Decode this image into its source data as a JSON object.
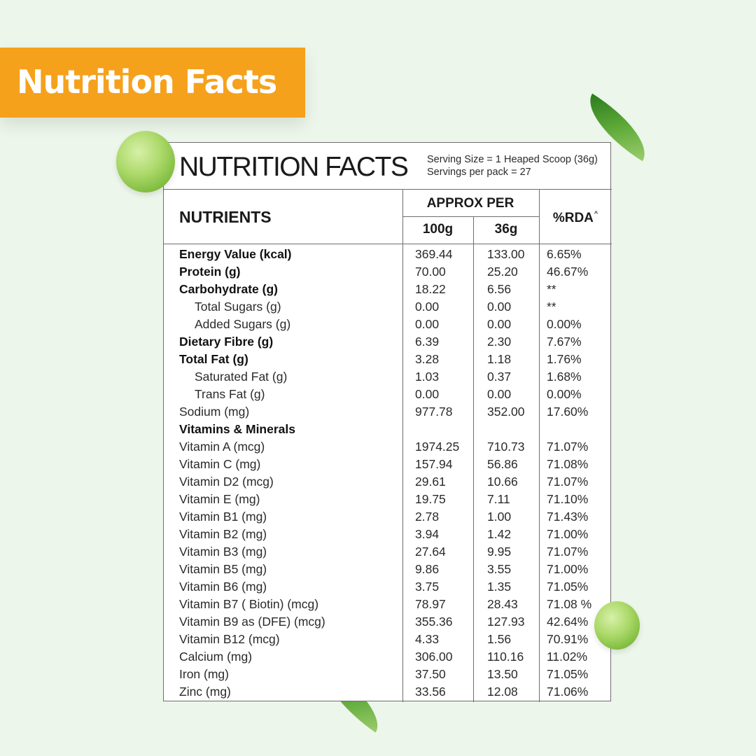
{
  "banner": {
    "title": "Nutrition Facts"
  },
  "card": {
    "title": "NUTRITION FACTS",
    "serving_size": "Serving Size = 1 Heaped Scoop (36g)",
    "servings_per_pack": "Servings per pack = 27"
  },
  "table": {
    "headers": {
      "nutrients": "NUTRIENTS",
      "approx_per": "APPROX PER",
      "col_100g": "100g",
      "col_36g": "36g",
      "rda": "%RDA",
      "rda_mark": "^"
    },
    "rows": [
      {
        "name": "Energy Value (kcal)",
        "v100": "369.44",
        "v36": "133.00",
        "rda": "6.65%",
        "style": "bold"
      },
      {
        "name": "Protein (g)",
        "v100": "70.00",
        "v36": "25.20",
        "rda": "46.67%",
        "style": "bold"
      },
      {
        "name": "Carbohydrate (g)",
        "v100": "18.22",
        "v36": "6.56",
        "rda": "**",
        "style": "bold"
      },
      {
        "name": "Total Sugars (g)",
        "v100": "0.00",
        "v36": "0.00",
        "rda": "**",
        "style": "indent"
      },
      {
        "name": "Added Sugars (g)",
        "v100": "0.00",
        "v36": "0.00",
        "rda": "0.00%",
        "style": "indent"
      },
      {
        "name": "Dietary Fibre (g)",
        "v100": "6.39",
        "v36": "2.30",
        "rda": "7.67%",
        "style": "bold"
      },
      {
        "name": "Total Fat (g)",
        "v100": "3.28",
        "v36": "1.18",
        "rda": "1.76%",
        "style": "bold"
      },
      {
        "name": "Saturated Fat (g)",
        "v100": "1.03",
        "v36": "0.37",
        "rda": "1.68%",
        "style": "indent"
      },
      {
        "name": "Trans Fat (g)",
        "v100": "0.00",
        "v36": "0.00",
        "rda": "0.00%",
        "style": "indent"
      },
      {
        "name": "Sodium (mg)",
        "v100": "977.78",
        "v36": "352.00",
        "rda": "17.60%",
        "style": "normal"
      },
      {
        "name": "Vitamins & Minerals",
        "v100": "",
        "v36": "",
        "rda": "",
        "style": "bold"
      },
      {
        "name": "Vitamin A (mcg)",
        "v100": "1974.25",
        "v36": "710.73",
        "rda": "71.07%",
        "style": "normal"
      },
      {
        "name": "Vitamin C (mg)",
        "v100": "157.94",
        "v36": "56.86",
        "rda": "71.08%",
        "style": "normal"
      },
      {
        "name": "Vitamin D2 (mcg)",
        "v100": "29.61",
        "v36": "10.66",
        "rda": "71.07%",
        "style": "normal"
      },
      {
        "name": "Vitamin E (mg)",
        "v100": "19.75",
        "v36": "7.11",
        "rda": "71.10%",
        "style": "normal"
      },
      {
        "name": "Vitamin B1 (mg)",
        "v100": "2.78",
        "v36": "1.00",
        "rda": "71.43%",
        "style": "normal"
      },
      {
        "name": "Vitamin B2 (mg)",
        "v100": "3.94",
        "v36": "1.42",
        "rda": "71.00%",
        "style": "normal"
      },
      {
        "name": "Vitamin B3 (mg)",
        "v100": "27.64",
        "v36": "9.95",
        "rda": "71.07%",
        "style": "normal"
      },
      {
        "name": "Vitamin B5 (mg)",
        "v100": "9.86",
        "v36": "3.55",
        "rda": "71.00%",
        "style": "normal"
      },
      {
        "name": "Vitamin B6 (mg)",
        "v100": "3.75",
        "v36": "1.35",
        "rda": "71.05%",
        "style": "normal"
      },
      {
        "name": "Vitamin B7 ( Biotin) (mcg)",
        "v100": "78.97",
        "v36": "28.43",
        "rda": "71.08 %",
        "style": "normal"
      },
      {
        "name": "Vitamin B9 as (DFE) (mcg)",
        "v100": "355.36",
        "v36": "127.93",
        "rda": "42.64%",
        "style": "normal"
      },
      {
        "name": "Vitamin B12 (mcg)",
        "v100": "4.33",
        "v36": "1.56",
        "rda": "70.91%",
        "style": "normal"
      },
      {
        "name": "Calcium (mg)",
        "v100": "306.00",
        "v36": "110.16",
        "rda": "11.02%",
        "style": "normal"
      },
      {
        "name": "Iron (mg)",
        "v100": "37.50",
        "v36": "13.50",
        "rda": "71.05%",
        "style": "normal"
      },
      {
        "name": "Zinc (mg)",
        "v100": "33.56",
        "v36": "12.08",
        "rda": "71.06%",
        "style": "normal"
      }
    ]
  },
  "colors": {
    "background": "#ecf6ea",
    "banner": "#f5a11c",
    "banner_text": "#ffffff",
    "border": "#6f6f6f"
  },
  "decorations": [
    "pea-image",
    "leaf-image"
  ]
}
